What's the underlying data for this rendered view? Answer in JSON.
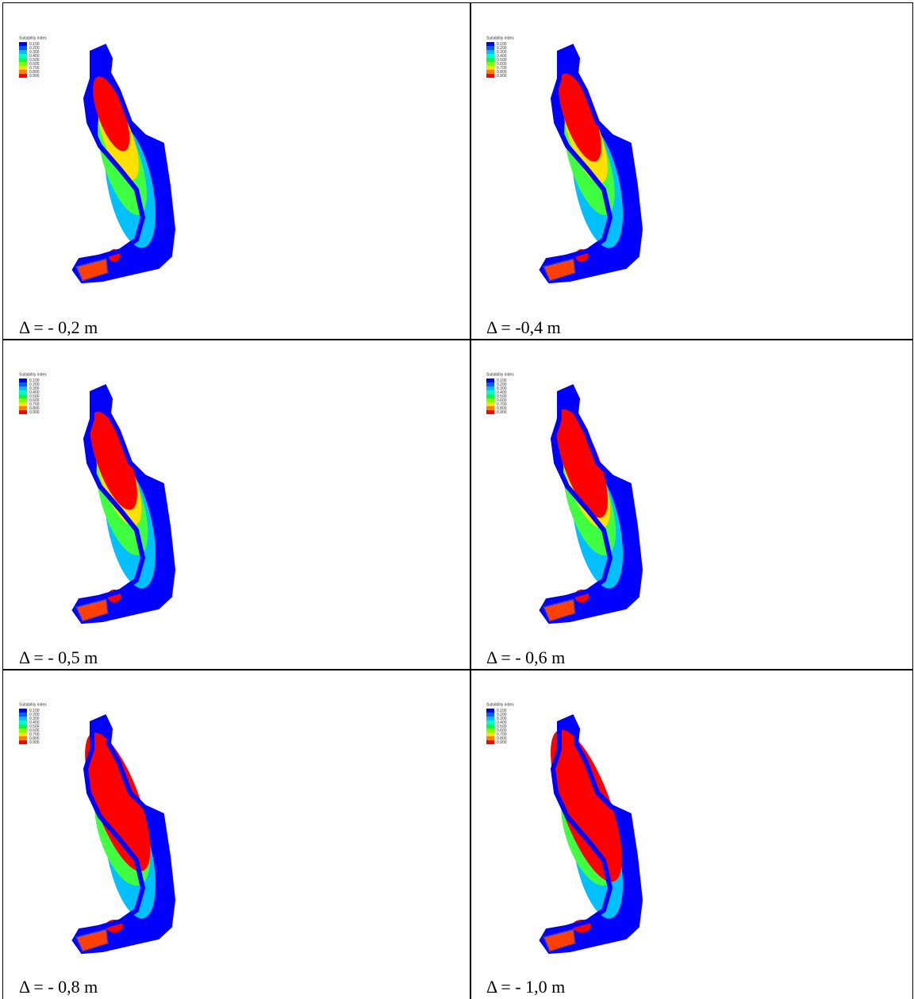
{
  "legend_colors": [
    "#0000ff",
    "#0060ff",
    "#00c0ff",
    "#00ffc0",
    "#00ff40",
    "#80ff00",
    "#ffe000",
    "#ff8000",
    "#ff0000"
  ],
  "panels": [
    {
      "legend": {
        "title": "Suitability index",
        "labels": [
          "0.100",
          "0.200",
          "0.300",
          "0.400",
          "0.500",
          "0.600",
          "0.700",
          "0.800",
          "0.900"
        ]
      },
      "caption": "Δ = - 0,2 m"
    },
    {
      "legend": {
        "title": "Suitability index",
        "labels": [
          "0.100",
          "0.200",
          "0.300",
          "0.400",
          "0.500",
          "0.600",
          "0.700",
          "0.800",
          "0.900"
        ]
      },
      "caption": "Δ = -0,4 m"
    },
    {
      "legend": {
        "title": "Suitability index",
        "labels": [
          "0.100",
          "0.200",
          "0.300",
          "0.400",
          "0.500",
          "0.600",
          "0.700",
          "0.800",
          "0.900"
        ]
      },
      "caption": "Δ = - 0,5 m"
    },
    {
      "legend": {
        "title": "Suitability index",
        "labels": [
          "0.100",
          "0.200",
          "0.300",
          "0.400",
          "0.500",
          "0.600",
          "0.700",
          "0.800",
          "0.900"
        ]
      },
      "caption": "Δ = - 0,6 m"
    },
    {
      "legend": {
        "title": "Suitability index",
        "labels": [
          "0.100",
          "0.200",
          "0.300",
          "0.400",
          "0.500",
          "0.600",
          "0.700",
          "0.800",
          "0.900"
        ]
      },
      "caption": "Δ = - 0,8 m"
    },
    {
      "legend": {
        "title": "Suitability index",
        "labels": [
          "0.100",
          "0.200",
          "0.300",
          "0.400",
          "0.500",
          "0.600",
          "0.700",
          "0.800",
          "0.900"
        ]
      },
      "caption": "Δ = - 1,0 m"
    }
  ]
}
